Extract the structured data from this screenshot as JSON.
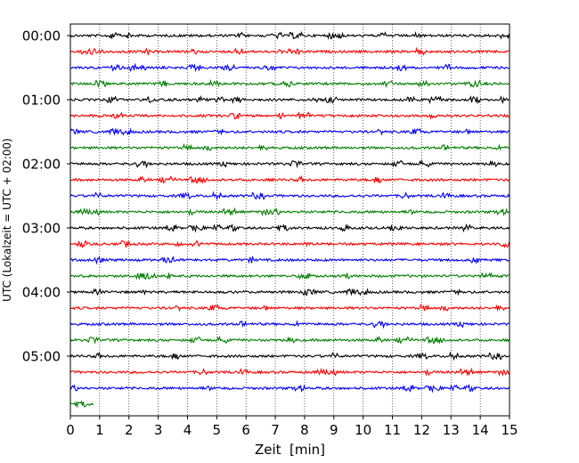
{
  "chart_data": {
    "type": "line",
    "subtype": "helicorder",
    "title": "",
    "xlabel": "Zeit  [min]",
    "ylabel": "UTC (Lokalzeit = UTC + 02:00)",
    "xlim": [
      0,
      15
    ],
    "x_ticks": [
      "0",
      "1",
      "2",
      "3",
      "4",
      "5",
      "6",
      "7",
      "8",
      "9",
      "10",
      "11",
      "12",
      "13",
      "14",
      "15"
    ],
    "y_ticks": [
      "00:00",
      "01:00",
      "02:00",
      "03:00",
      "04:00",
      "05:00"
    ],
    "grid": "vertical dotted",
    "trace_colors": [
      "#000000",
      "#ff0000",
      "#0000ff",
      "#007f00"
    ],
    "rows_per_hour": 4,
    "minutes_per_row": 15,
    "rows": [
      {
        "start": "00:00",
        "color": "#000000",
        "end_min": 15
      },
      {
        "start": "00:15",
        "color": "#ff0000",
        "end_min": 15
      },
      {
        "start": "00:30",
        "color": "#0000ff",
        "end_min": 15
      },
      {
        "start": "00:45",
        "color": "#007f00",
        "end_min": 15
      },
      {
        "start": "01:00",
        "color": "#000000",
        "end_min": 15
      },
      {
        "start": "01:15",
        "color": "#ff0000",
        "end_min": 15
      },
      {
        "start": "01:30",
        "color": "#0000ff",
        "end_min": 15
      },
      {
        "start": "01:45",
        "color": "#007f00",
        "end_min": 15
      },
      {
        "start": "02:00",
        "color": "#000000",
        "end_min": 15
      },
      {
        "start": "02:15",
        "color": "#ff0000",
        "end_min": 15
      },
      {
        "start": "02:30",
        "color": "#0000ff",
        "end_min": 15
      },
      {
        "start": "02:45",
        "color": "#007f00",
        "end_min": 15
      },
      {
        "start": "03:00",
        "color": "#000000",
        "end_min": 15
      },
      {
        "start": "03:15",
        "color": "#ff0000",
        "end_min": 15
      },
      {
        "start": "03:30",
        "color": "#0000ff",
        "end_min": 15
      },
      {
        "start": "03:45",
        "color": "#007f00",
        "end_min": 15
      },
      {
        "start": "04:00",
        "color": "#000000",
        "end_min": 15
      },
      {
        "start": "04:15",
        "color": "#ff0000",
        "end_min": 15
      },
      {
        "start": "04:30",
        "color": "#0000ff",
        "end_min": 15
      },
      {
        "start": "04:45",
        "color": "#007f00",
        "end_min": 15
      },
      {
        "start": "05:00",
        "color": "#000000",
        "end_min": 15
      },
      {
        "start": "05:15",
        "color": "#ff0000",
        "end_min": 15
      },
      {
        "start": "05:30",
        "color": "#0000ff",
        "end_min": 15
      },
      {
        "start": "05:45",
        "color": "#007f00",
        "end_min": 0.8
      }
    ]
  }
}
